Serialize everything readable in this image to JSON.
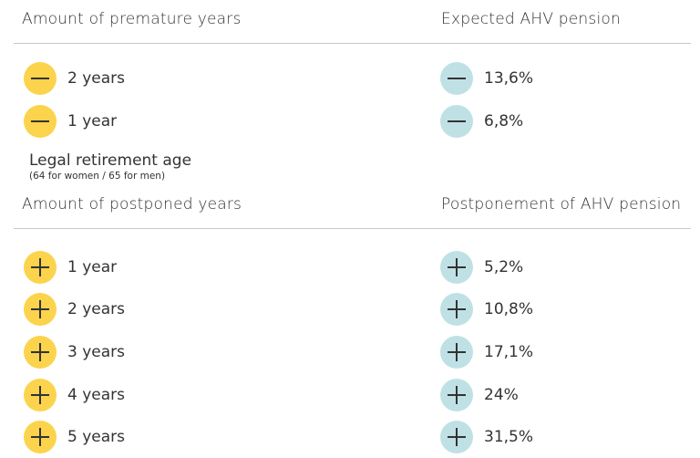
{
  "premature": {
    "header_left": "Amount of premature years",
    "header_right": "Expected AHV pension",
    "rows": [
      {
        "years": "2 years",
        "pension": "13,6%"
      },
      {
        "years": "1 year",
        "pension": "6,8%"
      }
    ]
  },
  "legal": {
    "title": "Legal retirement age",
    "subtitle": "(64 for women / 65 for men)"
  },
  "postponed": {
    "header_left": "Amount of postponed years",
    "header_right": "Postponement of AHV pension",
    "rows": [
      {
        "years": "1 year",
        "pension": "5,2%"
      },
      {
        "years": "2 years",
        "pension": "10,8%"
      },
      {
        "years": "3 years",
        "pension": "17,1%"
      },
      {
        "years": "4 years",
        "pension": "24%"
      },
      {
        "years": "5 years",
        "pension": "31,5%"
      }
    ]
  },
  "colors": {
    "years_circle": "#fcd34c",
    "pension_circle": "#bfe1e5",
    "rule": "#c8c8c8"
  },
  "icons": {
    "minus": "minus-icon",
    "plus": "plus-icon"
  }
}
